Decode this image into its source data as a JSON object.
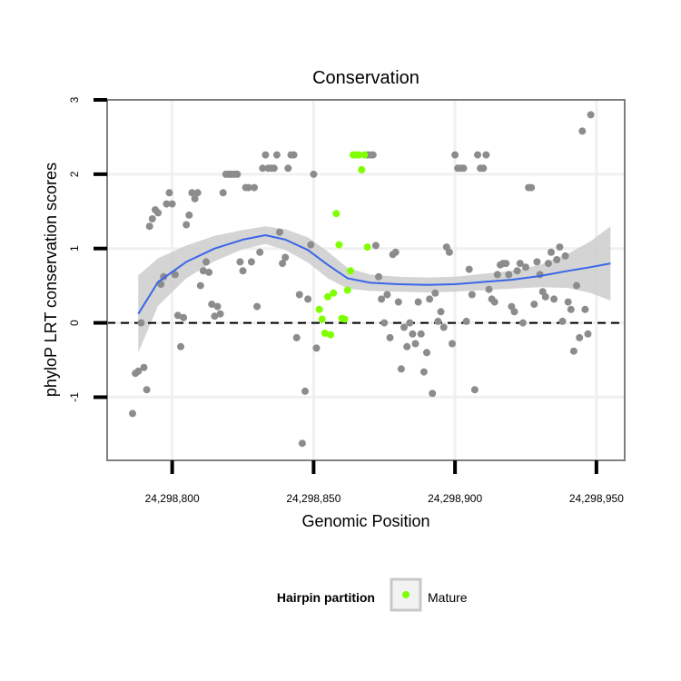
{
  "chart_data": {
    "type": "scatter",
    "title": "Conservation",
    "xlabel": "Genomic Position",
    "ylabel": "phyloP LRT conservation scores",
    "xlim": [
      24298777,
      24298960
    ],
    "ylim": [
      -1.85,
      3.0
    ],
    "x_ticks": [
      24298800,
      24298850,
      24298900,
      24298950
    ],
    "x_tick_labels": [
      "24,298,800",
      "24,298,850",
      "24,298,900",
      "24,298,950"
    ],
    "y_ticks": [
      -1,
      0,
      1,
      2,
      3
    ],
    "y_tick_labels": [
      "-1",
      "0",
      "1",
      "2",
      "3"
    ],
    "reference_line_y": 0,
    "legend": {
      "title": "Hairpin partition",
      "entries": [
        {
          "label": "Mature",
          "color": "#7fff00"
        }
      ]
    },
    "colors": {
      "other": "#8c8c8c",
      "mature": "#7fff00",
      "smooth": "#3a66e8",
      "band": "#cccccc",
      "panel_border": "#808080",
      "grid": "#f0f0f0"
    },
    "series": [
      {
        "name": "Other",
        "color": "#8c8c8c",
        "points": [
          [
            24298786,
            -1.22
          ],
          [
            24298787,
            -0.68
          ],
          [
            24298788,
            -0.65
          ],
          [
            24298789,
            0.0
          ],
          [
            24298790,
            -0.6
          ],
          [
            24298791,
            -0.9
          ],
          [
            24298792,
            1.3
          ],
          [
            24298793,
            1.4
          ],
          [
            24298794,
            1.52
          ],
          [
            24298795,
            1.48
          ],
          [
            24298796,
            0.52
          ],
          [
            24298797,
            0.62
          ],
          [
            24298798,
            1.6
          ],
          [
            24298799,
            1.75
          ],
          [
            24298800,
            1.6
          ],
          [
            24298801,
            0.65
          ],
          [
            24298802,
            0.1
          ],
          [
            24298803,
            -0.32
          ],
          [
            24298804,
            0.07
          ],
          [
            24298805,
            1.32
          ],
          [
            24298806,
            1.45
          ],
          [
            24298807,
            1.75
          ],
          [
            24298808,
            1.67
          ],
          [
            24298809,
            1.75
          ],
          [
            24298810,
            0.5
          ],
          [
            24298811,
            0.7
          ],
          [
            24298812,
            0.82
          ],
          [
            24298813,
            0.68
          ],
          [
            24298814,
            0.25
          ],
          [
            24298815,
            0.09
          ],
          [
            24298816,
            0.22
          ],
          [
            24298817,
            0.12
          ],
          [
            24298818,
            1.75
          ],
          [
            24298819,
            2.0
          ],
          [
            24298820,
            2.0
          ],
          [
            24298821,
            2.0
          ],
          [
            24298822,
            2.0
          ],
          [
            24298823,
            2.0
          ],
          [
            24298824,
            0.82
          ],
          [
            24298825,
            0.7
          ],
          [
            24298826,
            1.82
          ],
          [
            24298827,
            1.82
          ],
          [
            24298828,
            0.82
          ],
          [
            24298829,
            1.82
          ],
          [
            24298830,
            0.22
          ],
          [
            24298831,
            0.95
          ],
          [
            24298832,
            2.08
          ],
          [
            24298833,
            2.26
          ],
          [
            24298834,
            2.08
          ],
          [
            24298835,
            2.08
          ],
          [
            24298836,
            2.08
          ],
          [
            24298837,
            2.26
          ],
          [
            24298838,
            1.22
          ],
          [
            24298839,
            0.8
          ],
          [
            24298840,
            0.88
          ],
          [
            24298841,
            2.08
          ],
          [
            24298842,
            2.26
          ],
          [
            24298843,
            2.26
          ],
          [
            24298844,
            -0.2
          ],
          [
            24298845,
            0.38
          ],
          [
            24298846,
            -1.62
          ],
          [
            24298847,
            -0.92
          ],
          [
            24298848,
            0.32
          ],
          [
            24298849,
            1.05
          ],
          [
            24298850,
            2.0
          ],
          [
            24298851,
            -0.34
          ],
          [
            24298869,
            2.26
          ],
          [
            24298870,
            2.26
          ],
          [
            24298871,
            2.26
          ],
          [
            24298872,
            1.04
          ],
          [
            24298873,
            0.62
          ],
          [
            24298874,
            0.32
          ],
          [
            24298875,
            0.0
          ],
          [
            24298876,
            0.38
          ],
          [
            24298877,
            -0.2
          ],
          [
            24298878,
            0.92
          ],
          [
            24298879,
            0.95
          ],
          [
            24298880,
            0.28
          ],
          [
            24298881,
            -0.62
          ],
          [
            24298882,
            -0.06
          ],
          [
            24298883,
            -0.32
          ],
          [
            24298884,
            0.0
          ],
          [
            24298885,
            -0.15
          ],
          [
            24298886,
            -0.28
          ],
          [
            24298887,
            0.28
          ],
          [
            24298888,
            -0.15
          ],
          [
            24298889,
            -0.66
          ],
          [
            24298890,
            -0.4
          ],
          [
            24298891,
            0.32
          ],
          [
            24298892,
            -0.95
          ],
          [
            24298893,
            0.4
          ],
          [
            24298894,
            0.02
          ],
          [
            24298895,
            0.15
          ],
          [
            24298896,
            -0.06
          ],
          [
            24298897,
            1.02
          ],
          [
            24298898,
            0.95
          ],
          [
            24298899,
            -0.28
          ],
          [
            24298900,
            2.26
          ],
          [
            24298901,
            2.08
          ],
          [
            24298902,
            2.08
          ],
          [
            24298903,
            2.08
          ],
          [
            24298904,
            0.02
          ],
          [
            24298905,
            0.72
          ],
          [
            24298906,
            0.38
          ],
          [
            24298907,
            -0.9
          ],
          [
            24298908,
            2.26
          ],
          [
            24298909,
            2.08
          ],
          [
            24298910,
            2.08
          ],
          [
            24298911,
            2.26
          ],
          [
            24298912,
            0.45
          ],
          [
            24298913,
            0.32
          ],
          [
            24298914,
            0.28
          ],
          [
            24298915,
            0.65
          ],
          [
            24298916,
            0.78
          ],
          [
            24298917,
            0.8
          ],
          [
            24298918,
            0.8
          ],
          [
            24298919,
            0.65
          ],
          [
            24298920,
            0.22
          ],
          [
            24298921,
            0.15
          ],
          [
            24298922,
            0.7
          ],
          [
            24298923,
            0.8
          ],
          [
            24298924,
            0.0
          ],
          [
            24298925,
            0.75
          ],
          [
            24298926,
            1.82
          ],
          [
            24298927,
            1.82
          ],
          [
            24298928,
            0.25
          ],
          [
            24298929,
            0.82
          ],
          [
            24298930,
            0.65
          ],
          [
            24298931,
            0.42
          ],
          [
            24298932,
            0.35
          ],
          [
            24298933,
            0.8
          ],
          [
            24298934,
            0.95
          ],
          [
            24298935,
            0.32
          ],
          [
            24298936,
            0.85
          ],
          [
            24298937,
            1.02
          ],
          [
            24298938,
            0.02
          ],
          [
            24298939,
            0.9
          ],
          [
            24298940,
            0.28
          ],
          [
            24298941,
            0.18
          ],
          [
            24298942,
            -0.38
          ],
          [
            24298943,
            0.5
          ],
          [
            24298944,
            -0.2
          ],
          [
            24298945,
            2.58
          ],
          [
            24298946,
            0.18
          ],
          [
            24298947,
            -0.15
          ],
          [
            24298948,
            2.8
          ]
        ]
      },
      {
        "name": "Mature",
        "color": "#7fff00",
        "points": [
          [
            24298852,
            0.18
          ],
          [
            24298853,
            0.05
          ],
          [
            24298854,
            -0.14
          ],
          [
            24298855,
            0.35
          ],
          [
            24298856,
            -0.16
          ],
          [
            24298857,
            0.4
          ],
          [
            24298858,
            1.47
          ],
          [
            24298859,
            1.05
          ],
          [
            24298860,
            0.06
          ],
          [
            24298861,
            0.05
          ],
          [
            24298862,
            0.44
          ],
          [
            24298863,
            0.7
          ],
          [
            24298864,
            2.26
          ],
          [
            24298865,
            2.26
          ],
          [
            24298866,
            2.26
          ],
          [
            24298867,
            2.06
          ],
          [
            24298868,
            2.26
          ],
          [
            24298869,
            1.02
          ]
        ]
      }
    ],
    "smooth_line": {
      "x": [
        24298788,
        24298795,
        24298805,
        24298815,
        24298825,
        24298833,
        24298840,
        24298848,
        24298855,
        24298862,
        24298870,
        24298880,
        24298890,
        24298900,
        24298910,
        24298920,
        24298930,
        24298940,
        24298948,
        24298955
      ],
      "y": [
        0.12,
        0.55,
        0.82,
        1.0,
        1.12,
        1.18,
        1.12,
        0.98,
        0.78,
        0.6,
        0.54,
        0.52,
        0.51,
        0.52,
        0.55,
        0.58,
        0.63,
        0.7,
        0.75,
        0.8
      ],
      "band_width": [
        0.52,
        0.32,
        0.22,
        0.17,
        0.13,
        0.12,
        0.14,
        0.17,
        0.18,
        0.14,
        0.11,
        0.1,
        0.1,
        0.1,
        0.11,
        0.12,
        0.15,
        0.23,
        0.35,
        0.5
      ]
    }
  }
}
